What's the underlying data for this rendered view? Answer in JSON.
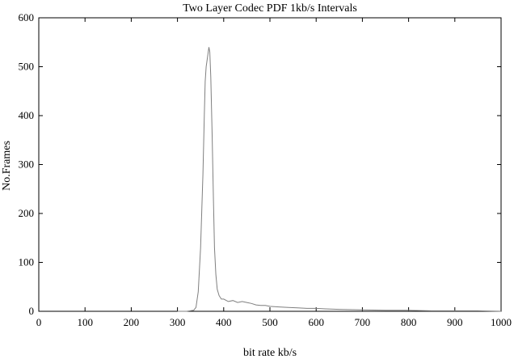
{
  "chart_data": {
    "type": "line",
    "title": "Two Layer Codec PDF 1kb/s Intervals",
    "xlabel": "bit rate kb/s",
    "ylabel": "No.Frames",
    "xlim": [
      0,
      1000
    ],
    "ylim": [
      0,
      600
    ],
    "xticks": [
      "0",
      "100",
      "200",
      "300",
      "400",
      "500",
      "600",
      "700",
      "800",
      "900",
      "1000"
    ],
    "yticks": [
      "0",
      "100",
      "200",
      "300",
      "400",
      "500",
      "600"
    ],
    "grid": false,
    "series_color": "#7f7f7f",
    "x": [
      300,
      320,
      335,
      340,
      345,
      350,
      355,
      358,
      360,
      362,
      365,
      368,
      370,
      372,
      375,
      378,
      380,
      383,
      386,
      390,
      395,
      400,
      410,
      420,
      430,
      440,
      450,
      460,
      470,
      480,
      490,
      500,
      520,
      540,
      560,
      580,
      600,
      620,
      650,
      700,
      750,
      800,
      850,
      900,
      950,
      1000
    ],
    "y": [
      0,
      0,
      2,
      8,
      40,
      130,
      280,
      400,
      470,
      500,
      520,
      540,
      530,
      480,
      360,
      220,
      130,
      75,
      45,
      32,
      25,
      25,
      20,
      22,
      18,
      20,
      18,
      16,
      13,
      12,
      12,
      10,
      9,
      8,
      7,
      6,
      6,
      5,
      4,
      3,
      2,
      2,
      1,
      1,
      1,
      0
    ]
  }
}
